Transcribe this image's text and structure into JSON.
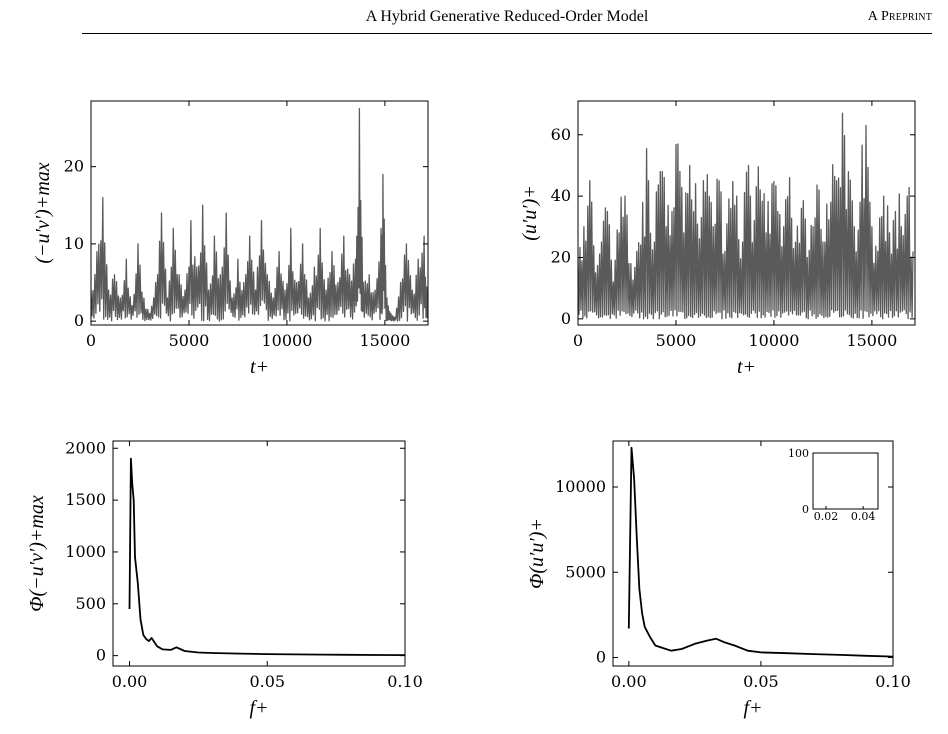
{
  "header": {
    "title": "A Hybrid Generative Reduced-Order Model",
    "tag": "A Preprint"
  },
  "chart_data": [
    {
      "type": "line",
      "title": "",
      "xlabel": "t+",
      "ylabel": "(−u′v′)+max",
      "xlim": [
        0,
        17200
      ],
      "ylim": [
        -0.5,
        28.5
      ],
      "xticks": [
        "0",
        "5000",
        "10000",
        "15000"
      ],
      "yticks": [
        "0",
        "10",
        "20"
      ],
      "color": "#5a5a5a",
      "series": [
        {
          "x": [
            0,
            300,
            600,
            900,
            1200,
            1500,
            1800,
            2100,
            2400,
            2700,
            3000,
            3300,
            3600,
            3900,
            4200,
            4500,
            4800,
            5100,
            5400,
            5700,
            6000,
            6300,
            6600,
            6900,
            7200,
            7500,
            7800,
            8100,
            8400,
            8700,
            9000,
            9300,
            9600,
            9900,
            10200,
            10500,
            10800,
            11100,
            11400,
            11700,
            12000,
            12300,
            12600,
            12900,
            13200,
            13500,
            13700,
            13900,
            14200,
            14500,
            14800,
            14900,
            15100,
            15300,
            15500,
            15800,
            16100,
            16400,
            16700,
            17000,
            17200
          ],
          "values": [
            4,
            9,
            16,
            4,
            6,
            3,
            8,
            2,
            10,
            3,
            1,
            5,
            14,
            3,
            12,
            6,
            4,
            13,
            7,
            15,
            4,
            11,
            6,
            14,
            3,
            8,
            5,
            11,
            4,
            13,
            6,
            3,
            9,
            4,
            12,
            5,
            10,
            3,
            7,
            12,
            4,
            9,
            5,
            11,
            6,
            8,
            27.5,
            5,
            6,
            4,
            12,
            19,
            3,
            1,
            0.5,
            5,
            10,
            4,
            8,
            11,
            4
          ]
        }
      ]
    },
    {
      "type": "line",
      "title": "",
      "xlabel": "t+",
      "ylabel": "(u′u′)+",
      "xlim": [
        0,
        17200
      ],
      "ylim": [
        -2,
        71
      ],
      "xticks": [
        "0",
        "5000",
        "10000",
        "15000"
      ],
      "yticks": [
        "0",
        "20",
        "40",
        "60"
      ],
      "color": "#5a5a5a",
      "series": [
        {
          "x": [
            0,
            300,
            600,
            900,
            1200,
            1500,
            1800,
            2100,
            2400,
            2700,
            3000,
            3300,
            3600,
            3900,
            4200,
            4500,
            4800,
            5100,
            5400,
            5700,
            6000,
            6300,
            6600,
            6900,
            7200,
            7500,
            7800,
            8100,
            8400,
            8700,
            9000,
            9300,
            9600,
            9900,
            10200,
            10500,
            10800,
            11100,
            11400,
            11700,
            12000,
            12300,
            12600,
            12900,
            13200,
            13500,
            13800,
            14100,
            14400,
            14700,
            15000,
            15300,
            15600,
            15900,
            16200,
            16500,
            16800,
            17100
          ],
          "values": [
            20,
            30,
            45,
            15,
            25,
            35,
            12,
            28,
            40,
            18,
            22,
            38,
            45,
            25,
            48,
            30,
            35,
            57,
            28,
            50,
            44,
            33,
            47,
            30,
            45,
            22,
            36,
            40,
            25,
            50,
            32,
            42,
            28,
            44,
            35,
            30,
            46,
            25,
            36,
            20,
            30,
            42,
            25,
            38,
            45,
            67,
            48,
            30,
            38,
            63,
            30,
            22,
            40,
            28,
            35,
            30,
            40,
            22
          ]
        }
      ]
    },
    {
      "type": "line",
      "title": "",
      "xlabel": "f+",
      "ylabel": "Φ(−u′v′)+max",
      "xlim": [
        -0.006,
        0.1
      ],
      "ylim": [
        -100,
        2070
      ],
      "xticks": [
        "0.00",
        "0.05",
        "0.10"
      ],
      "yticks": [
        "0",
        "500",
        "1000",
        "1500",
        "2000"
      ],
      "color": "#000000",
      "series": [
        {
          "x": [
            0.0,
            0.0005,
            0.001,
            0.0015,
            0.002,
            0.003,
            0.004,
            0.005,
            0.006,
            0.007,
            0.008,
            0.01,
            0.012,
            0.015,
            0.017,
            0.02,
            0.025,
            0.03,
            0.04,
            0.05,
            0.06,
            0.07,
            0.08,
            0.09,
            0.1
          ],
          "values": [
            450,
            1900,
            1650,
            1500,
            950,
            700,
            350,
            200,
            160,
            140,
            170,
            90,
            60,
            55,
            80,
            45,
            30,
            25,
            20,
            15,
            12,
            10,
            8,
            6,
            5
          ]
        }
      ]
    },
    {
      "type": "line",
      "title": "",
      "xlabel": "f+",
      "ylabel": "Φ(u′u′)+",
      "xlim": [
        -0.006,
        0.1
      ],
      "ylim": [
        -500,
        12700
      ],
      "xticks": [
        "0.00",
        "0.05",
        "0.10"
      ],
      "yticks": [
        "0",
        "5000",
        "10000"
      ],
      "color": "#000000",
      "series": [
        {
          "x": [
            0.0,
            0.001,
            0.002,
            0.003,
            0.004,
            0.005,
            0.006,
            0.008,
            0.01,
            0.013,
            0.016,
            0.02,
            0.025,
            0.03,
            0.033,
            0.036,
            0.04,
            0.045,
            0.05,
            0.06,
            0.07,
            0.08,
            0.09,
            0.1
          ],
          "values": [
            1700,
            12300,
            10500,
            7000,
            4000,
            2600,
            1800,
            1200,
            700,
            550,
            400,
            500,
            800,
            1000,
            1100,
            900,
            700,
            400,
            300,
            250,
            200,
            150,
            100,
            50
          ]
        }
      ]
    }
  ],
  "inset": {
    "type": "line",
    "xticks": [
      "0.02",
      "0.04"
    ],
    "yticks": [
      "0",
      "100"
    ],
    "xlim": [
      0.013,
      0.048
    ],
    "ylim": [
      0,
      100
    ]
  }
}
